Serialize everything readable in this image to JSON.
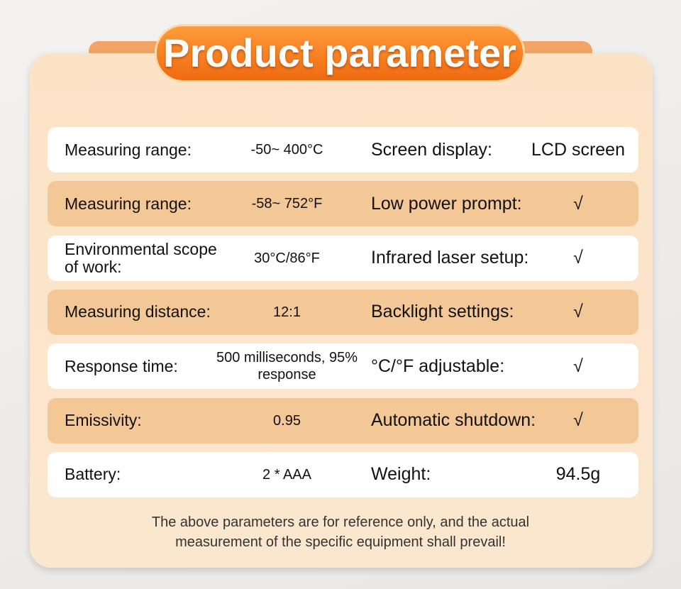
{
  "header": {
    "title": "Product parameter"
  },
  "table": {
    "rows": [
      [
        "Measuring range:",
        "-50~ 400°C",
        "Screen display:",
        "LCD screen"
      ],
      [
        "Measuring range:",
        "-58~ 752°F",
        "Low power prompt:",
        "√"
      ],
      [
        "Environmental scope of work:",
        "30°C/86°F",
        "Infrared laser setup:",
        "√"
      ],
      [
        "Measuring distance:",
        "12:1",
        "Backlight settings:",
        "√"
      ],
      [
        "Response time:",
        "500 milliseconds, 95% response",
        "°C/°F adjustable:",
        "√"
      ],
      [
        "Emissivity:",
        "0.95",
        "Automatic shutdown:",
        "√"
      ],
      [
        "Battery:",
        "2 * AAA",
        "Weight:",
        "94.5g"
      ]
    ]
  },
  "footer": {
    "note": "The above parameters are for reference only, and the actual measurement of the specific equipment shall prevail!"
  }
}
